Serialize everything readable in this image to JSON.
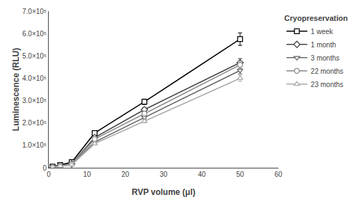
{
  "chart_data": {
    "type": "line",
    "xlabel": "RVP volume (μl)",
    "ylabel": "Luminescence (RLU)",
    "legend_title": "Cryopreservation",
    "x": [
      1,
      3,
      6,
      12,
      25,
      50
    ],
    "series": [
      {
        "name": "1 week",
        "color": "#000000",
        "marker": "square",
        "values": [
          5000,
          12000,
          25000,
          155000,
          295000,
          575000
        ],
        "errors": [
          500,
          1000,
          2000,
          8000,
          12000,
          28000
        ]
      },
      {
        "name": "1 month",
        "color": "#444444",
        "marker": "diamond",
        "values": [
          3000,
          9000,
          18000,
          135000,
          260000,
          470000
        ],
        "errors": [
          300,
          700,
          1500,
          6000,
          9000,
          18000
        ]
      },
      {
        "name": "3 months",
        "color": "#666666",
        "marker": "triangle-down",
        "values": [
          2000,
          7000,
          14000,
          115000,
          225000,
          435000
        ],
        "errors": [
          200,
          600,
          1200,
          5000,
          7000,
          15000
        ]
      },
      {
        "name": "22 months",
        "color": "#888888",
        "marker": "circle",
        "values": [
          2500,
          8500,
          17000,
          128000,
          242000,
          460000
        ],
        "errors": [
          250,
          650,
          1400,
          5500,
          8000,
          17000
        ]
      },
      {
        "name": "23 months",
        "color": "#aaaaaa",
        "marker": "triangle-up",
        "values": [
          2000,
          7500,
          13500,
          108000,
          208000,
          400000
        ],
        "errors": [
          200,
          600,
          1100,
          4500,
          7000,
          14000
        ]
      }
    ],
    "xlim": [
      0,
      60
    ],
    "xticks": [
      0,
      10,
      20,
      30,
      40,
      50,
      60
    ],
    "ylim": [
      0,
      700000
    ],
    "yticks": [
      0,
      {
        "value": 100000,
        "label": "1.0×10⁵"
      },
      {
        "value": 200000,
        "label": "2.0×10⁵"
      },
      {
        "value": 300000,
        "label": "3.0×10⁵"
      },
      {
        "value": 400000,
        "label": "4.0×10⁵"
      },
      {
        "value": 500000,
        "label": "5.0×10⁵"
      },
      {
        "value": 600000,
        "label": "6.0×10⁵"
      },
      {
        "value": 700000,
        "label": "7.0×10⁵"
      }
    ],
    "grid": false,
    "legend": "right"
  }
}
